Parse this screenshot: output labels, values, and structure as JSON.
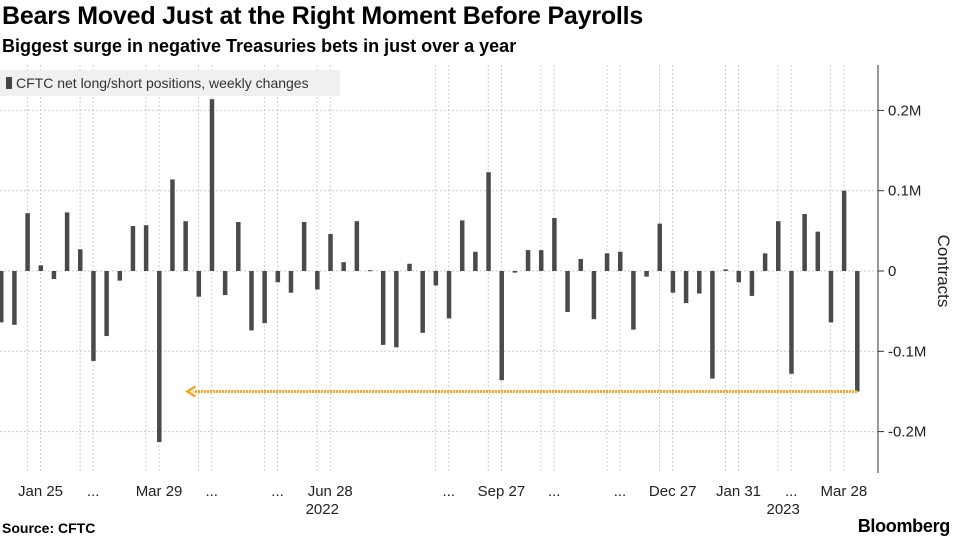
{
  "title": "Bears Moved Just at the Right Moment Before Payrolls",
  "subtitle": "Biggest surge in negative Treasuries bets in just over a year",
  "source": "Source: CFTC",
  "logo": "Bloomberg",
  "colors": {
    "bar": "#4a4a4a",
    "arrow": "#f5a623",
    "grid": "#cccccc"
  },
  "chart_data": {
    "type": "bar",
    "legend": [
      "CFTC net long/short positions, weekly changes"
    ],
    "legend_position": "top-left",
    "ylabel": "Contracts",
    "ylim": [
      -0.25,
      0.25
    ],
    "y_unit": "million contracts",
    "yticks": [
      0.2,
      0.1,
      0,
      -0.1,
      -0.2
    ],
    "ytick_labels": [
      "0.2M",
      "0.1M",
      "0",
      "-0.1M",
      "-0.2M"
    ],
    "grid": true,
    "x_range": [
      "2022-01-04",
      "2023-04-04"
    ],
    "x_interval": "weekly",
    "xtick_labels": [
      {
        "index": 3,
        "label": "Jan 25"
      },
      {
        "index": 7,
        "label": "..."
      },
      {
        "index": 12,
        "label": "Mar 29"
      },
      {
        "index": 16,
        "label": "..."
      },
      {
        "index": 21,
        "label": "..."
      },
      {
        "index": 25,
        "label": "Jun 28"
      },
      {
        "index": 34,
        "label": "..."
      },
      {
        "index": 38,
        "label": "Sep 27"
      },
      {
        "index": 42,
        "label": "..."
      },
      {
        "index": 47,
        "label": "..."
      },
      {
        "index": 51,
        "label": "Dec 27"
      },
      {
        "index": 56,
        "label": "Jan 31"
      },
      {
        "index": 60,
        "label": "..."
      },
      {
        "index": 64,
        "label": "Mar 28"
      }
    ],
    "year_labels": [
      {
        "index": 25,
        "label": "2022"
      },
      {
        "index": 60,
        "label": "2023"
      }
    ],
    "values": [
      -0.064,
      -0.067,
      0.072,
      0.007,
      -0.01,
      0.073,
      0.027,
      -0.112,
      -0.081,
      -0.012,
      0.056,
      0.057,
      -0.213,
      0.114,
      0.062,
      -0.032,
      0.214,
      -0.03,
      0.061,
      -0.074,
      -0.065,
      -0.014,
      -0.027,
      0.061,
      -0.023,
      0.046,
      0.011,
      0.062,
      0.001,
      -0.092,
      -0.095,
      0.009,
      -0.077,
      -0.018,
      -0.059,
      0.063,
      0.024,
      0.123,
      -0.136,
      -0.002,
      0.026,
      0.026,
      0.066,
      -0.051,
      0.015,
      -0.06,
      0.022,
      0.024,
      -0.073,
      -0.007,
      0.059,
      -0.027,
      -0.04,
      -0.028,
      -0.134,
      0.002,
      -0.014,
      -0.031,
      0.022,
      0.062,
      -0.128,
      0.071,
      0.049,
      -0.064,
      0.1,
      -0.15
    ],
    "annotations": [
      {
        "type": "arrow",
        "level": -0.15,
        "from_index": 65,
        "to_index": 14
      }
    ]
  }
}
